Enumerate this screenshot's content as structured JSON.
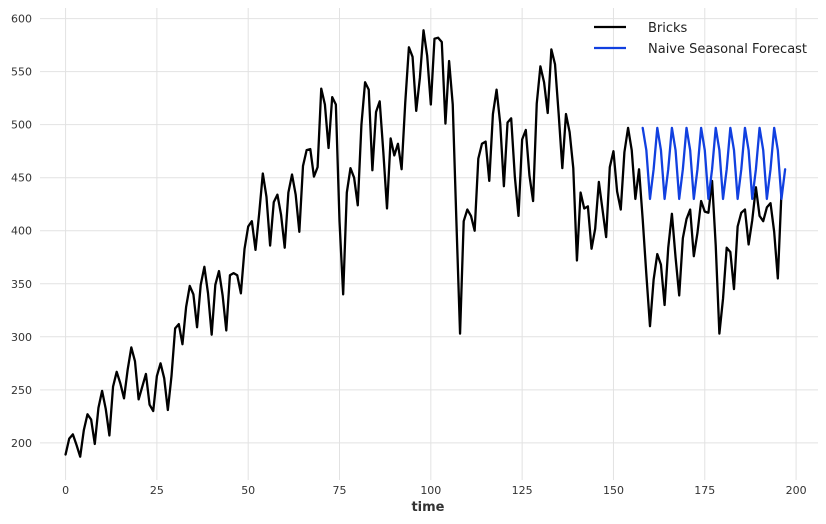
{
  "chart_data": {
    "type": "line",
    "title": "",
    "xlabel": "time",
    "ylabel": "",
    "xlim": [
      -7,
      206
    ],
    "ylim": [
      165,
      610
    ],
    "grid": true,
    "legend_position": "top-right",
    "x_ticks": [
      "0",
      "25",
      "50",
      "75",
      "100",
      "125",
      "150",
      "175",
      "200"
    ],
    "y_ticks": [
      "200",
      "250",
      "300",
      "350",
      "400",
      "450",
      "500",
      "550",
      "600"
    ],
    "series": [
      {
        "name": "Bricks",
        "color": "#000000",
        "x_start": 0,
        "values": [
          189,
          204,
          208,
          198,
          187,
          212,
          227,
          222,
          199,
          233,
          249,
          232,
          207,
          253,
          267,
          256,
          242,
          269,
          290,
          277,
          241,
          253,
          265,
          236,
          230,
          263,
          275,
          261,
          231,
          263,
          308,
          312,
          293,
          328,
          348,
          340,
          309,
          349,
          366,
          341,
          302,
          349,
          362,
          339,
          306,
          358,
          360,
          358,
          341,
          383,
          404,
          409,
          382,
          416,
          454,
          432,
          386,
          427,
          434,
          415,
          384,
          436,
          453,
          434,
          399,
          461,
          476,
          477,
          451,
          460,
          534,
          519,
          478,
          526,
          519,
          409,
          340,
          436,
          459,
          450,
          424,
          500,
          540,
          533,
          457,
          512,
          522,
          474,
          421,
          487,
          471,
          482,
          458,
          521,
          573,
          564,
          513,
          544,
          589,
          565,
          519,
          581,
          582,
          578,
          501,
          560,
          519,
          409,
          303,
          409,
          420,
          414,
          400,
          468,
          482,
          484,
          447,
          510,
          533,
          501,
          442,
          502,
          506,
          451,
          414,
          486,
          495,
          452,
          428,
          520,
          555,
          540,
          511,
          571,
          557,
          510,
          459,
          510,
          493,
          459,
          372,
          436,
          421,
          423,
          383,
          402,
          446,
          420,
          394,
          460,
          475,
          437,
          420,
          474,
          497,
          476,
          430,
          458,
          411,
          359,
          310,
          354,
          378,
          368,
          330,
          384,
          416,
          375,
          339,
          393,
          411,
          420,
          376,
          398,
          428,
          418,
          417,
          447,
          386,
          303,
          336,
          384,
          380,
          345,
          404,
          417,
          420,
          387,
          410,
          441,
          414,
          409,
          422,
          426,
          399,
          355,
          436
        ]
      },
      {
        "name": "Naive Seasonal Forecast",
        "color": "#1140e0",
        "x_start": 158,
        "values": [
          497,
          476,
          430,
          458,
          497,
          476,
          430,
          458,
          497,
          476,
          430,
          458,
          497,
          476,
          430,
          458,
          497,
          476,
          430,
          458,
          497,
          476,
          430,
          458,
          497,
          476,
          430,
          458,
          497,
          476,
          430,
          458,
          497,
          476,
          430,
          458,
          497,
          476,
          430,
          458
        ]
      }
    ]
  }
}
